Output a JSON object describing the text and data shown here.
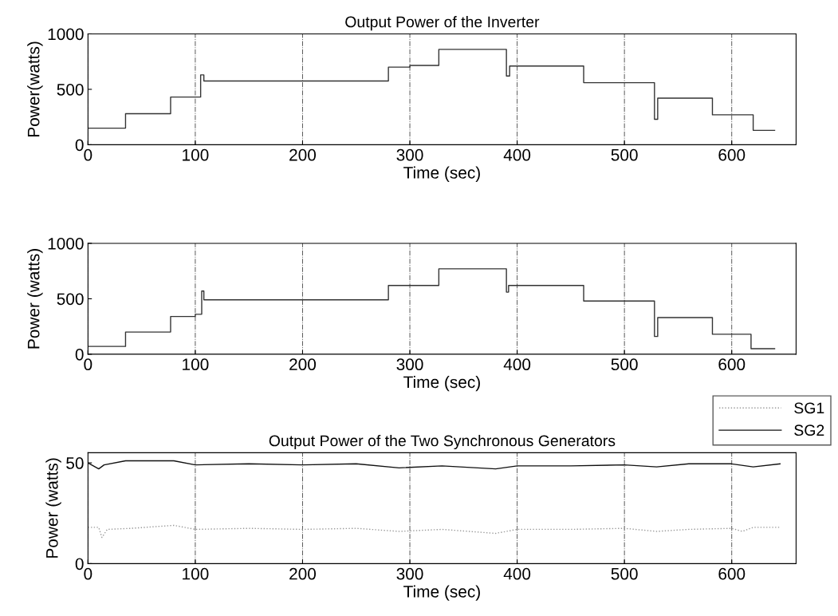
{
  "chart_data": [
    {
      "type": "step",
      "title": "Output Power of the Inverter",
      "xlabel": "Time (sec)",
      "ylabel": "Power(watts)",
      "xlim": [
        0,
        660
      ],
      "ylim": [
        0,
        1000
      ],
      "xticks": [
        0,
        100,
        200,
        300,
        400,
        500,
        600
      ],
      "yticks": [
        0,
        500,
        1000
      ],
      "grid": "x",
      "legend": false,
      "series": [
        {
          "color": "#333333",
          "x": [
            0,
            35,
            77,
            105,
            108,
            280,
            300,
            327,
            390,
            393,
            462,
            528,
            531,
            582,
            620,
            640
          ],
          "values": [
            150,
            280,
            430,
            630,
            575,
            700,
            715,
            860,
            620,
            710,
            560,
            230,
            420,
            270,
            130,
            130
          ]
        }
      ]
    },
    {
      "type": "step",
      "xlabel": "Time (sec)",
      "ylabel": "Power (watts)",
      "xlim": [
        0,
        660
      ],
      "ylim": [
        0,
        1000
      ],
      "xticks": [
        0,
        100,
        200,
        300,
        400,
        500,
        600
      ],
      "yticks": [
        0,
        500,
        1000
      ],
      "grid": "x",
      "legend": false,
      "series": [
        {
          "color": "#333333",
          "x": [
            0,
            35,
            77,
            100,
            106,
            108,
            280,
            327,
            390,
            392,
            462,
            528,
            531,
            582,
            618,
            640
          ],
          "values": [
            70,
            200,
            340,
            360,
            570,
            490,
            620,
            770,
            560,
            620,
            480,
            160,
            330,
            180,
            50,
            50
          ]
        }
      ]
    },
    {
      "type": "line",
      "title": "Output Power of the Two Synchronous Generators",
      "xlabel": "Time (sec)",
      "ylabel": "Power (watts)",
      "xlim": [
        0,
        660
      ],
      "ylim": [
        0,
        55
      ],
      "xticks": [
        0,
        100,
        200,
        300,
        400,
        500,
        600
      ],
      "yticks": [
        0,
        50
      ],
      "grid": "x",
      "legend": "top right",
      "series": [
        {
          "name": "SG1",
          "color": "#999999",
          "line_style": "dotted",
          "x": [
            0,
            10,
            13,
            18,
            40,
            80,
            100,
            150,
            200,
            250,
            290,
            330,
            380,
            400,
            450,
            500,
            530,
            560,
            600,
            610,
            620,
            645
          ],
          "values": [
            18,
            18,
            13,
            17,
            17.5,
            19,
            17,
            17.5,
            17,
            17.5,
            16,
            17,
            15,
            17,
            17,
            17.5,
            16,
            17,
            17.5,
            16,
            18,
            18
          ]
        },
        {
          "name": "SG2",
          "color": "#111111",
          "line_style": "solid",
          "x": [
            0,
            10,
            15,
            35,
            80,
            100,
            150,
            200,
            250,
            290,
            330,
            380,
            400,
            450,
            500,
            530,
            560,
            600,
            620,
            645
          ],
          "values": [
            50,
            47,
            49,
            51,
            51,
            49,
            49.5,
            49,
            49.5,
            47.5,
            48.5,
            47,
            48.5,
            48.5,
            49,
            48,
            49.5,
            49.5,
            48,
            49.5
          ]
        }
      ]
    }
  ]
}
